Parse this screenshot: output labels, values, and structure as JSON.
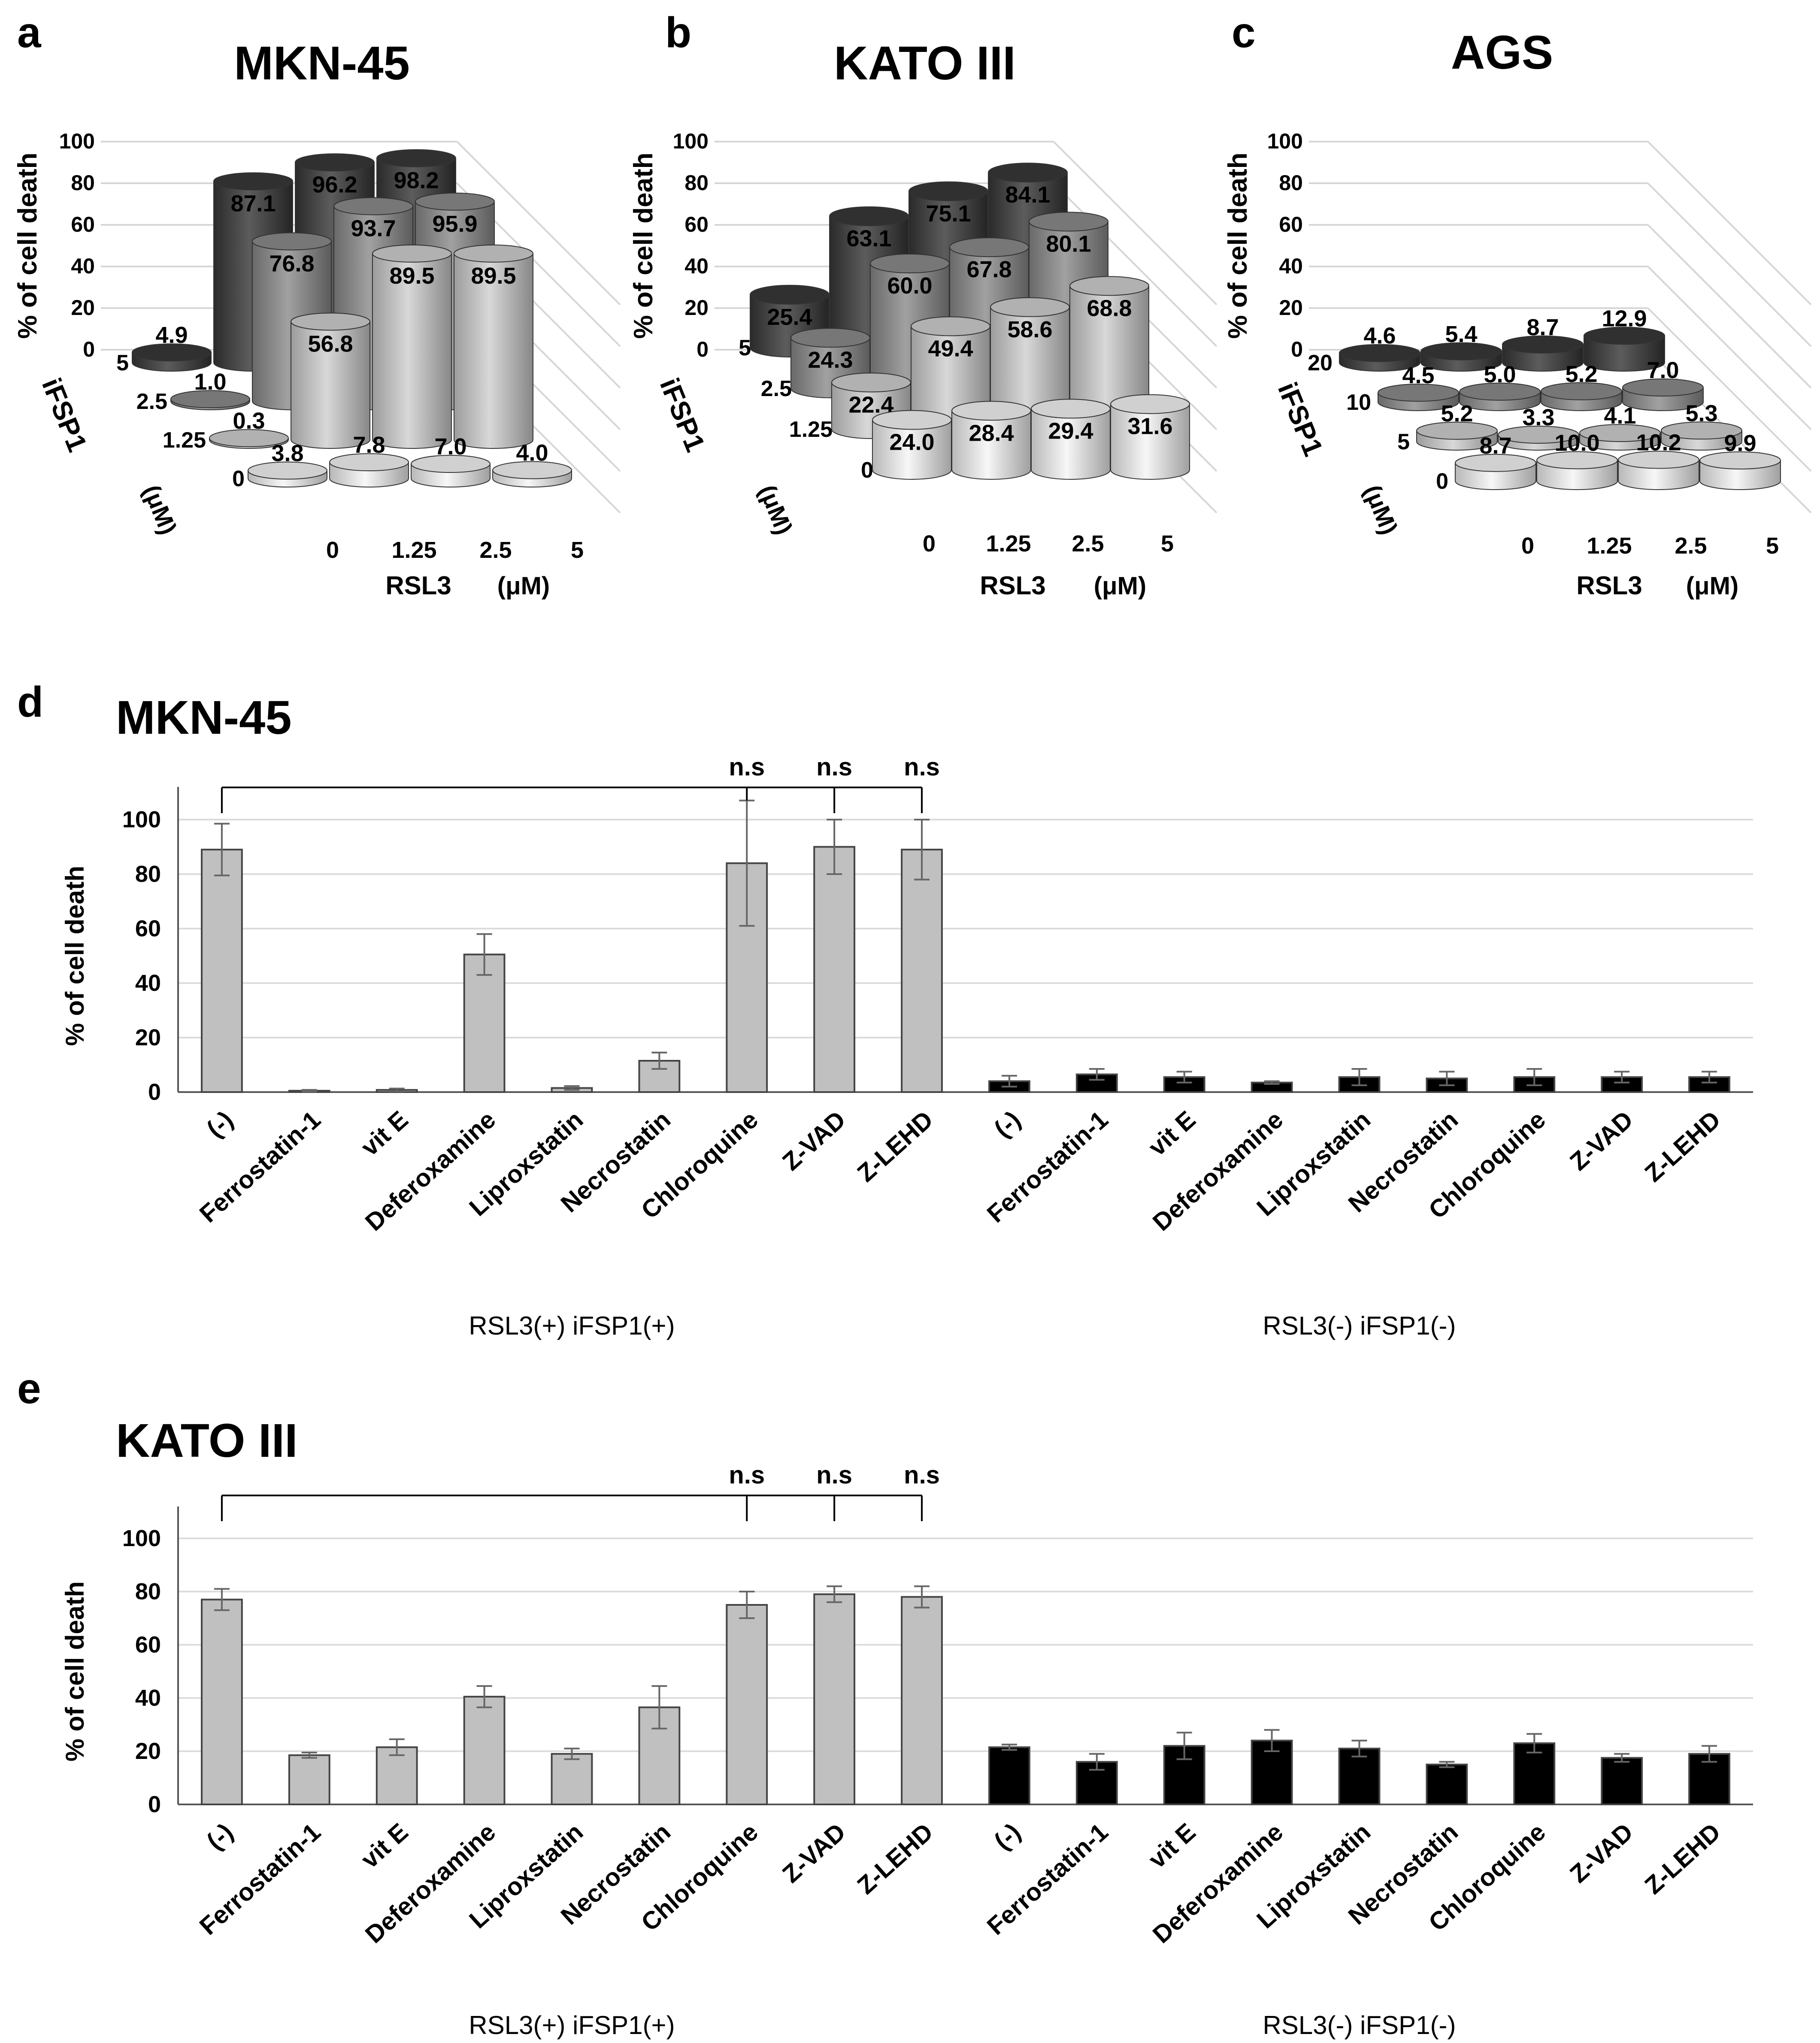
{
  "chart_data": [
    {
      "panel": "a",
      "type": "bar",
      "style": "3d-cylinder",
      "title": "MKN-45",
      "zlabel": "% of cell death",
      "zticks": [
        "0",
        "20",
        "40",
        "60",
        "80",
        "100"
      ],
      "zlim": [
        0,
        100
      ],
      "xlabel": "RSL3",
      "xunit": "(μM)",
      "categories": [
        "0",
        "1.25",
        "2.5",
        "5"
      ],
      "ylabel": "iFSP1",
      "yunit": "(μM)",
      "series": [
        {
          "name": "5",
          "values": [
            4.9,
            87.1,
            96.2,
            98.2
          ],
          "labels": [
            "4.9",
            "87.1",
            "96.2",
            "98.2"
          ],
          "color": "#383838"
        },
        {
          "name": "2.5",
          "values": [
            1.0,
            76.8,
            93.7,
            95.9
          ],
          "labels": [
            "1.0",
            "76.8",
            "93.7",
            "95.9"
          ],
          "color": "#8c8c8c"
        },
        {
          "name": "1.25",
          "values": [
            0.3,
            56.8,
            89.5,
            89.5
          ],
          "labels": [
            "0.3",
            "56.8",
            "89.5",
            "89.5"
          ],
          "color": "#d0d0d0"
        },
        {
          "name": "0",
          "values": [
            3.8,
            7.8,
            7.0,
            4.0
          ],
          "labels": [
            "3.8",
            "7.8",
            "7.0",
            "4.0"
          ],
          "color": "#f5f5f5"
        }
      ]
    },
    {
      "panel": "b",
      "type": "bar",
      "style": "3d-cylinder",
      "title": "KATO III",
      "zlabel": "% of cell death",
      "zticks": [
        "0",
        "20",
        "40",
        "60",
        "80",
        "100"
      ],
      "zlim": [
        0,
        100
      ],
      "xlabel": "RSL3",
      "xunit": "(μM)",
      "categories": [
        "0",
        "1.25",
        "2.5",
        "5"
      ],
      "ylabel": "iFSP1",
      "yunit": "(μM)",
      "series": [
        {
          "name": "5",
          "values": [
            25.4,
            63.1,
            75.1,
            84.1
          ],
          "labels": [
            "25.4",
            "63.1",
            "75.1",
            "84.1"
          ],
          "color": "#383838"
        },
        {
          "name": "2.5",
          "values": [
            24.3,
            60.0,
            67.8,
            80.1
          ],
          "labels": [
            "24.3",
            "60.0",
            "67.8",
            "80.1"
          ],
          "color": "#8c8c8c"
        },
        {
          "name": "1.25",
          "values": [
            22.4,
            49.4,
            58.6,
            68.8
          ],
          "labels": [
            "22.4",
            "49.4",
            "58.6",
            "68.8"
          ],
          "color": "#d0d0d0"
        },
        {
          "name": "0",
          "values": [
            24.0,
            28.4,
            29.4,
            31.6
          ],
          "labels": [
            "24.0",
            "28.4",
            "29.4",
            "31.6"
          ],
          "color": "#f5f5f5"
        }
      ]
    },
    {
      "panel": "c",
      "type": "bar",
      "style": "3d-cylinder",
      "title": "AGS",
      "zlabel": "% of cell death",
      "zticks": [
        "0",
        "20",
        "40",
        "60",
        "80",
        "100"
      ],
      "zlim": [
        0,
        100
      ],
      "xlabel": "RSL3",
      "xunit": "(μM)",
      "categories": [
        "0",
        "1.25",
        "2.5",
        "5"
      ],
      "ylabel": "iFSP1",
      "yunit": "(μM)",
      "series": [
        {
          "name": "20",
          "values": [
            4.6,
            5.4,
            8.7,
            12.9
          ],
          "labels": [
            "4.6",
            "5.4",
            "8.7",
            "12.9"
          ],
          "color": "#383838"
        },
        {
          "name": "10",
          "values": [
            4.5,
            5.0,
            5.2,
            7.0
          ],
          "labels": [
            "4.5",
            "5.0",
            "5.2",
            "7.0"
          ],
          "color": "#8c8c8c"
        },
        {
          "name": "5",
          "values": [
            5.2,
            3.3,
            4.1,
            5.3
          ],
          "labels": [
            "5.2",
            "3.3",
            "4.1",
            "5.3"
          ],
          "color": "#d0d0d0"
        },
        {
          "name": "0",
          "values": [
            8.7,
            10.0,
            10.2,
            9.9
          ],
          "labels": [
            "8.7",
            "10.0",
            "10.2",
            "9.9"
          ],
          "color": "#f5f5f5"
        }
      ]
    },
    {
      "panel": "d",
      "type": "bar",
      "title": "MKN-45",
      "ylabel": "% of cell death",
      "ylim": [
        0,
        110
      ],
      "yticks": [
        "0",
        "20",
        "40",
        "60",
        "80",
        "100"
      ],
      "grid": true,
      "categories": [
        "(-)",
        "Ferrostatin-1",
        "vit E",
        "Deferoxamine",
        "Liproxstatin",
        "Necrostatin",
        "Chloroquine",
        "Z-VAD",
        "Z-LEHD"
      ],
      "groups": [
        {
          "name": "RSL3(+)  iFSP1(+)",
          "color": "#c0c0c0",
          "values": [
            89,
            0.5,
            0.8,
            50.5,
            1.5,
            11.5,
            84,
            90,
            89
          ],
          "errors": [
            9.5,
            0.3,
            0.5,
            7.5,
            0.7,
            3,
            23,
            10,
            11
          ]
        },
        {
          "name": "RSL3(-)  iFSP1(-)",
          "color": "#000000",
          "values": [
            4,
            6.5,
            5.5,
            3.5,
            5.5,
            5,
            5.5,
            5.5,
            5.5
          ],
          "errors": [
            2,
            2,
            2,
            0.5,
            3,
            2.5,
            3,
            2,
            2
          ]
        }
      ],
      "significance": {
        "labels": [
          "n.s",
          "n.s",
          "n.s"
        ],
        "compare_from": "(-)",
        "compare_to": [
          "Chloroquine",
          "Z-VAD",
          "Z-LEHD"
        ]
      }
    },
    {
      "panel": "e",
      "type": "bar",
      "title": "KATO III",
      "ylabel": "% of cell death",
      "ylim": [
        0,
        110
      ],
      "yticks": [
        "0",
        "20",
        "40",
        "60",
        "80",
        "100"
      ],
      "grid": true,
      "categories": [
        "(-)",
        "Ferrostatin-1",
        "vit E",
        "Deferoxamine",
        "Liproxstatin",
        "Necrostatin",
        "Chloroquine",
        "Z-VAD",
        "Z-LEHD"
      ],
      "groups": [
        {
          "name": "RSL3(+)  iFSP1(+)",
          "color": "#c0c0c0",
          "values": [
            77,
            18.5,
            21.5,
            40.5,
            19,
            36.5,
            75,
            79,
            78
          ],
          "errors": [
            4,
            1,
            3,
            4,
            2,
            8,
            5,
            3,
            4
          ]
        },
        {
          "name": "RSL3(-)  iFSP1(-)",
          "color": "#000000",
          "values": [
            21.5,
            16,
            22,
            24,
            21,
            15,
            23,
            17.5,
            19
          ],
          "errors": [
            1,
            3,
            5,
            4,
            3,
            1,
            3.5,
            1.5,
            3
          ]
        }
      ],
      "significance": {
        "labels": [
          "n.s",
          "n.s",
          "n.s"
        ],
        "compare_from": "(-)",
        "compare_to": [
          "Chloroquine",
          "Z-VAD",
          "Z-LEHD"
        ]
      }
    }
  ]
}
